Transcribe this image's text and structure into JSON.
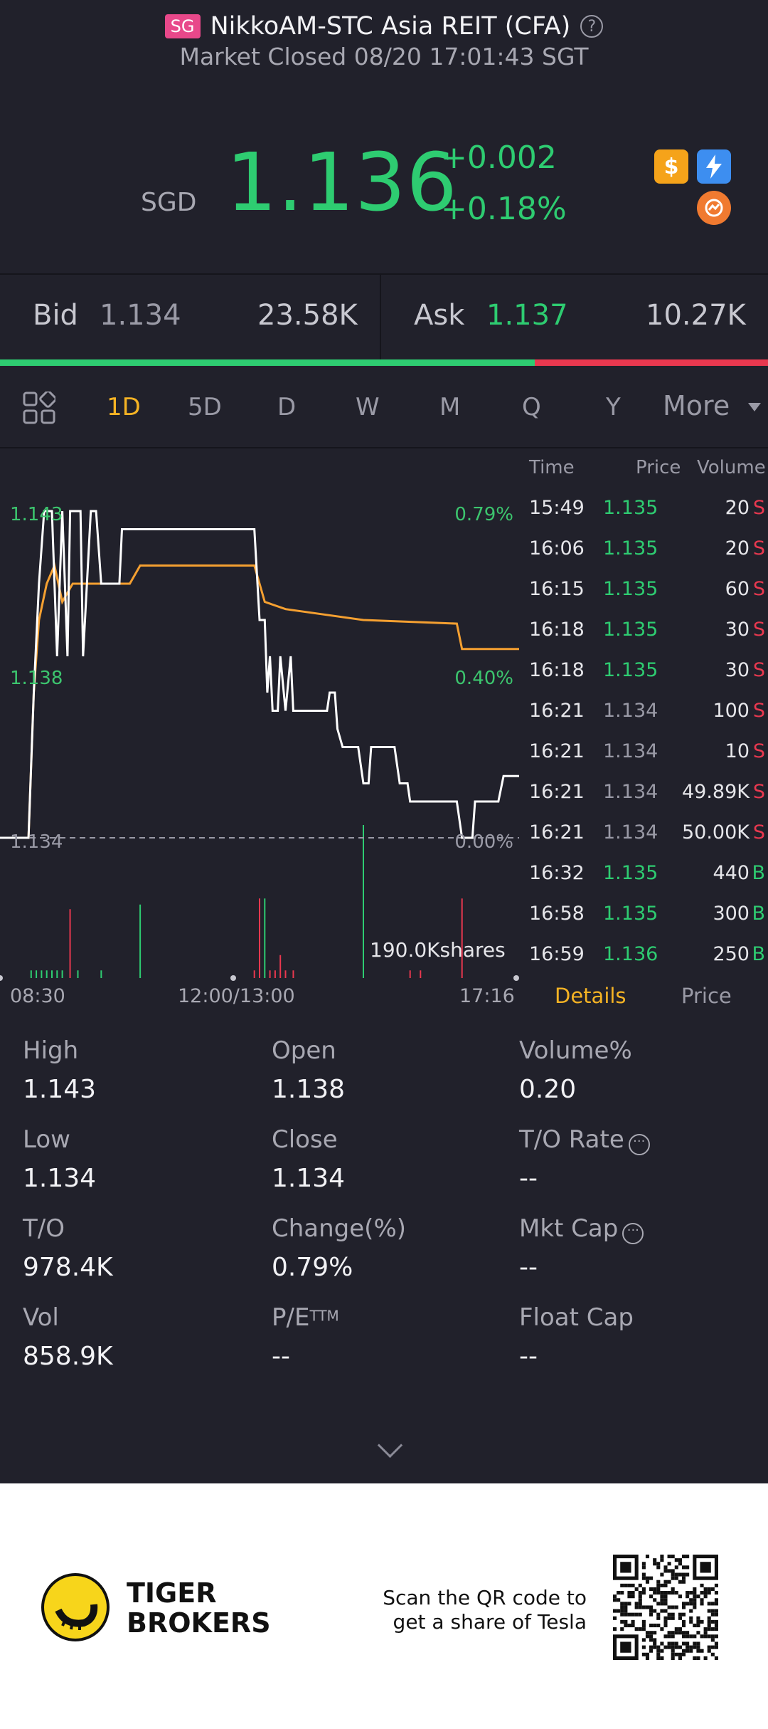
{
  "header": {
    "exchange_badge": "SG",
    "title": "NikkoAM-STC Asia REIT (CFA)",
    "help_icon": "?",
    "market_status": "Market Closed 08/20 17:01:43 SGT"
  },
  "quote": {
    "currency": "SGD",
    "last_price": "1.136",
    "change": "+0.002",
    "change_pct": "+0.18%",
    "icons": [
      "dollar-icon",
      "flash-icon",
      "swap-icon"
    ]
  },
  "bid_ask": {
    "bid_label": "Bid",
    "bid_price": "1.134",
    "bid_size": "23.58K",
    "ask_label": "Ask",
    "ask_price": "1.137",
    "ask_size": "10.27K",
    "bid_share": 0.696
  },
  "period_tabs": {
    "items": [
      "1D",
      "5D",
      "D",
      "W",
      "M",
      "Q",
      "Y"
    ],
    "more": "More",
    "selected": "1D"
  },
  "chart_data": {
    "type": "line",
    "y_labels_left": [
      "1.143",
      "1.138",
      "1.134"
    ],
    "y_labels_right": [
      "0.79%",
      "0.40%",
      "0.00%"
    ],
    "x_labels": [
      "08:30",
      "12:00/13:00",
      "17:16"
    ],
    "volume_label": "190.0Kshares",
    "ylim": [
      1.134,
      1.143
    ],
    "xlim": [
      0,
      100
    ],
    "series": [
      {
        "color": "#ffffff",
        "points": [
          [
            0,
            1.134
          ],
          [
            5.5,
            1.134
          ],
          [
            6.5,
            1.138
          ],
          [
            7.5,
            1.141
          ],
          [
            8.5,
            1.143
          ],
          [
            10,
            1.143
          ],
          [
            11,
            1.139
          ],
          [
            12,
            1.143
          ],
          [
            13,
            1.139
          ],
          [
            13.5,
            1.143
          ],
          [
            15.5,
            1.143
          ],
          [
            16,
            1.139
          ],
          [
            17.5,
            1.143
          ],
          [
            18.5,
            1.143
          ],
          [
            19.5,
            1.141
          ],
          [
            23,
            1.141
          ],
          [
            23.5,
            1.1425
          ],
          [
            49,
            1.1425
          ],
          [
            50,
            1.14
          ],
          [
            51,
            1.14
          ],
          [
            51.5,
            1.138
          ],
          [
            52,
            1.139
          ],
          [
            52.5,
            1.1375
          ],
          [
            53.5,
            1.1375
          ],
          [
            54,
            1.139
          ],
          [
            55,
            1.1375
          ],
          [
            56,
            1.139
          ],
          [
            56.5,
            1.1375
          ],
          [
            63,
            1.1375
          ],
          [
            63.5,
            1.138
          ],
          [
            64.5,
            1.138
          ],
          [
            65,
            1.137
          ],
          [
            66,
            1.1365
          ],
          [
            69,
            1.1365
          ],
          [
            70,
            1.1355
          ],
          [
            71,
            1.1355
          ],
          [
            71.5,
            1.1365
          ],
          [
            76,
            1.1365
          ],
          [
            77,
            1.1355
          ],
          [
            78.5,
            1.1355
          ],
          [
            79,
            1.135
          ],
          [
            88,
            1.135
          ],
          [
            89,
            1.134
          ],
          [
            91,
            1.134
          ],
          [
            91.5,
            1.135
          ],
          [
            96,
            1.135
          ],
          [
            97,
            1.1357
          ],
          [
            100,
            1.1357
          ]
        ]
      },
      {
        "color": "#f5a031",
        "points": [
          [
            0,
            1.134
          ],
          [
            5.5,
            1.134
          ],
          [
            6.5,
            1.138
          ],
          [
            7.5,
            1.14
          ],
          [
            9,
            1.141
          ],
          [
            10.5,
            1.1415
          ],
          [
            12,
            1.1405
          ],
          [
            14,
            1.141
          ],
          [
            17,
            1.141
          ],
          [
            20,
            1.141
          ],
          [
            22,
            1.141
          ],
          [
            25,
            1.141
          ],
          [
            27,
            1.1415
          ],
          [
            37,
            1.1415
          ],
          [
            49,
            1.1415
          ],
          [
            50,
            1.141
          ],
          [
            51,
            1.1405
          ],
          [
            55,
            1.1403
          ],
          [
            60,
            1.1402
          ],
          [
            70,
            1.14
          ],
          [
            88,
            1.1399
          ],
          [
            89,
            1.1392
          ],
          [
            100,
            1.1392
          ]
        ]
      }
    ],
    "volume_bars": [
      {
        "x": 6,
        "v": 0.05,
        "c": "green"
      },
      {
        "x": 7,
        "v": 0.05,
        "c": "green"
      },
      {
        "x": 8,
        "v": 0.05,
        "c": "green"
      },
      {
        "x": 9,
        "v": 0.05,
        "c": "green"
      },
      {
        "x": 10,
        "v": 0.05,
        "c": "green"
      },
      {
        "x": 11,
        "v": 0.05,
        "c": "green"
      },
      {
        "x": 12,
        "v": 0.05,
        "c": "green"
      },
      {
        "x": 13.5,
        "v": 0.45,
        "c": "red"
      },
      {
        "x": 15,
        "v": 0.05,
        "c": "green"
      },
      {
        "x": 19.5,
        "v": 0.05,
        "c": "green"
      },
      {
        "x": 27,
        "v": 0.48,
        "c": "green"
      },
      {
        "x": 49,
        "v": 0.05,
        "c": "red"
      },
      {
        "x": 50,
        "v": 0.52,
        "c": "red"
      },
      {
        "x": 51,
        "v": 0.52,
        "c": "green"
      },
      {
        "x": 52,
        "v": 0.05,
        "c": "red"
      },
      {
        "x": 53,
        "v": 0.05,
        "c": "red"
      },
      {
        "x": 54,
        "v": 0.15,
        "c": "red"
      },
      {
        "x": 55,
        "v": 0.05,
        "c": "red"
      },
      {
        "x": 56.5,
        "v": 0.05,
        "c": "red"
      },
      {
        "x": 70,
        "v": 1.0,
        "c": "green"
      },
      {
        "x": 79,
        "v": 0.05,
        "c": "red"
      },
      {
        "x": 81,
        "v": 0.05,
        "c": "red"
      },
      {
        "x": 89,
        "v": 0.52,
        "c": "red"
      }
    ]
  },
  "tick_table": {
    "headers": {
      "time": "Time",
      "price": "Price",
      "volume": "Volume"
    },
    "rows": [
      {
        "time": "15:49",
        "price": "1.135",
        "dir": "up",
        "volume": "20",
        "side": "S"
      },
      {
        "time": "16:06",
        "price": "1.135",
        "dir": "up",
        "volume": "20",
        "side": "S"
      },
      {
        "time": "16:15",
        "price": "1.135",
        "dir": "up",
        "volume": "60",
        "side": "S"
      },
      {
        "time": "16:18",
        "price": "1.135",
        "dir": "up",
        "volume": "30",
        "side": "S"
      },
      {
        "time": "16:18",
        "price": "1.135",
        "dir": "up",
        "volume": "30",
        "side": "S"
      },
      {
        "time": "16:21",
        "price": "1.134",
        "dir": "down",
        "volume": "100",
        "side": "S"
      },
      {
        "time": "16:21",
        "price": "1.134",
        "dir": "down",
        "volume": "10",
        "side": "S"
      },
      {
        "time": "16:21",
        "price": "1.134",
        "dir": "down",
        "volume": "49.89K",
        "side": "S"
      },
      {
        "time": "16:21",
        "price": "1.134",
        "dir": "down",
        "volume": "50.00K",
        "side": "S"
      },
      {
        "time": "16:32",
        "price": "1.135",
        "dir": "up",
        "volume": "440",
        "side": "B"
      },
      {
        "time": "16:58",
        "price": "1.135",
        "dir": "up",
        "volume": "300",
        "side": "B"
      },
      {
        "time": "16:59",
        "price": "1.136",
        "dir": "up",
        "volume": "250",
        "side": "B"
      }
    ],
    "tab_details": "Details",
    "tab_price": "Price"
  },
  "stats": {
    "high_label": "High",
    "high": "1.143",
    "open_label": "Open",
    "open": "1.138",
    "volpct_label": "Volume%",
    "volpct": "0.20",
    "low_label": "Low",
    "low": "1.134",
    "close_label": "Close",
    "close": "1.134",
    "torate_label": "T/O Rate",
    "torate": "--",
    "to_label": "T/O",
    "to": "978.4K",
    "chg_label": "Change(%)",
    "chg": "0.79%",
    "mktcap_label": "Mkt Cap",
    "mktcap": "--",
    "vol_label": "Vol",
    "vol": "858.9K",
    "pe_label": "P/E",
    "pe_sup": "TTM",
    "pe": "--",
    "float_label": "Float Cap",
    "float": "--"
  },
  "footer": {
    "brand_line1": "TIGER",
    "brand_line2": "BROKERS",
    "promo_line1": "Scan the QR code to",
    "promo_line2": "get a share of Tesla"
  }
}
